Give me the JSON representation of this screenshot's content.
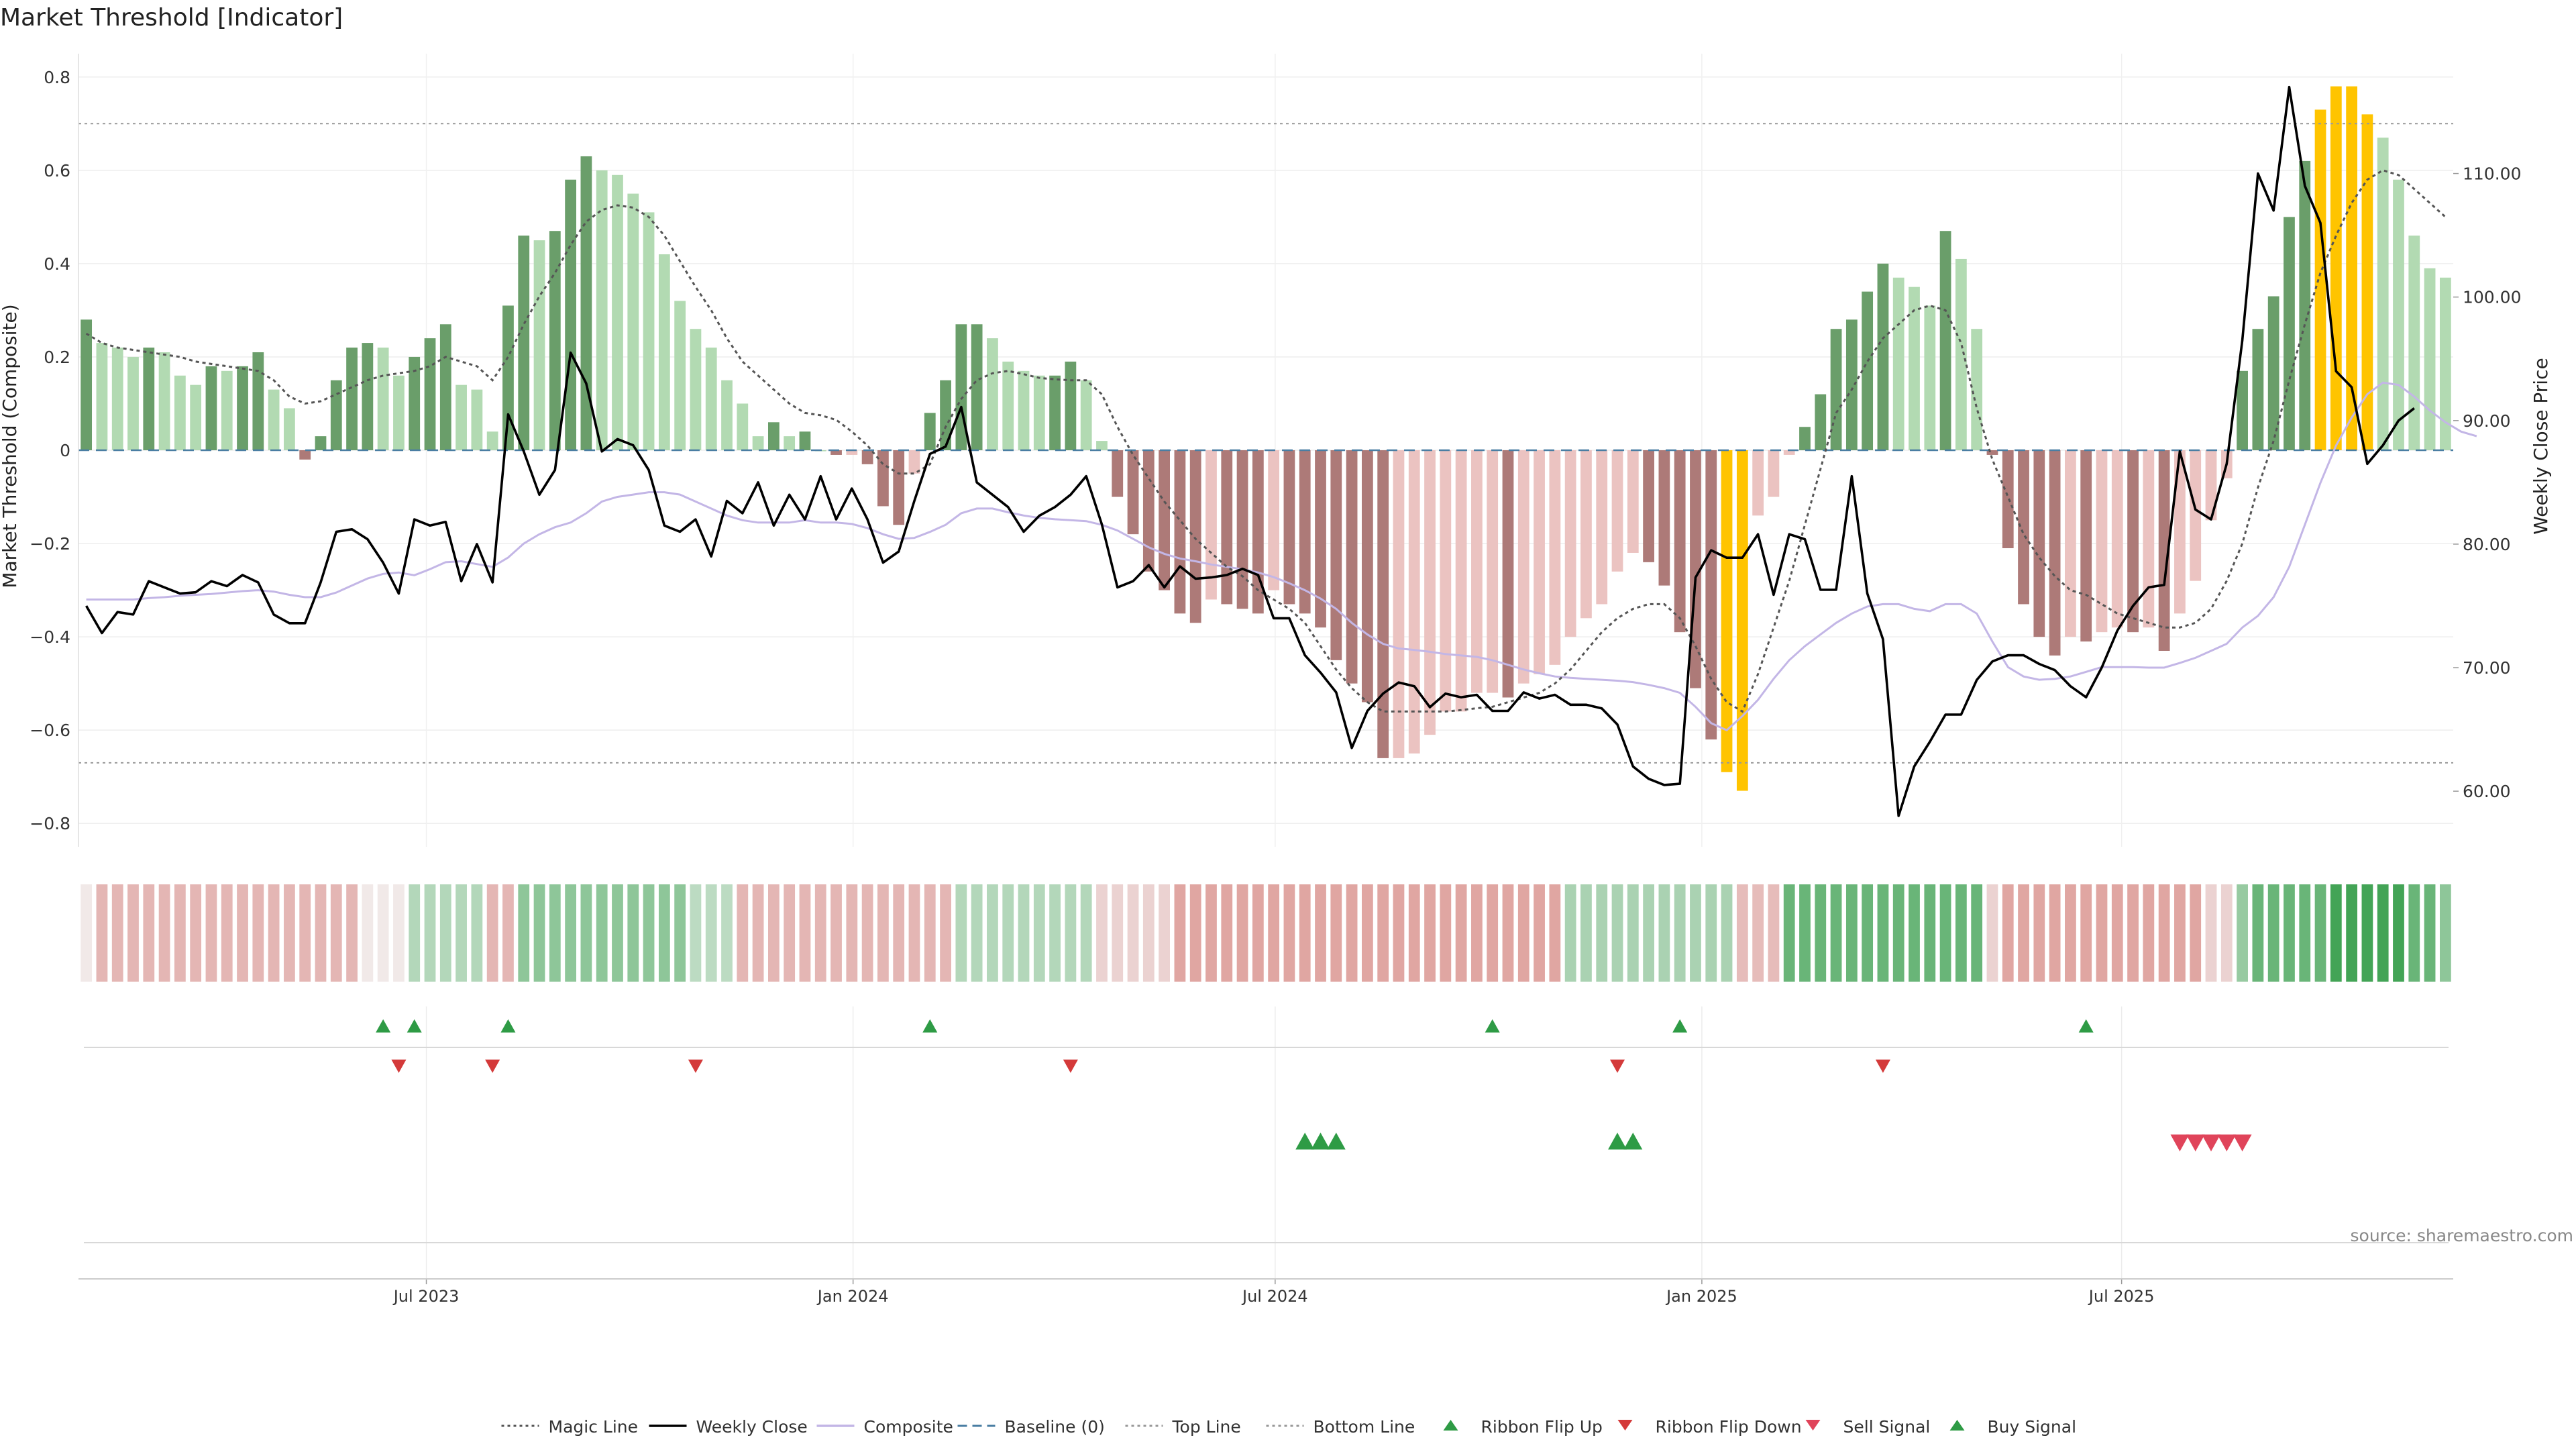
{
  "chart_data": {
    "type": "bar",
    "title": "Market Threshold [Indicator]",
    "ylabel": "Market Threshold (Composite)",
    "y2label": "Weekly Close Price",
    "ylim": [
      -0.85,
      0.85
    ],
    "y2lim": [
      55.5,
      119.7
    ],
    "yticks": [
      "0.8",
      "0.6",
      "0.4",
      "0.2",
      "0",
      "−0.2",
      "−0.4",
      "−0.6",
      "−0.8"
    ],
    "y2ticks": [
      "110.00",
      "100.00",
      "90.00",
      "80.00",
      "70.00",
      "60.00"
    ],
    "xticks": [
      "Jul 2023",
      "Jan 2024",
      "Jul 2024",
      "Jan 2025",
      "Jul 2025"
    ],
    "xtick_dates": [
      "2023-07-01",
      "2024-01-01",
      "2024-07-01",
      "2025-01-01",
      "2025-07-01"
    ],
    "date_range": [
      "2023-02-01",
      "2025-11-21"
    ],
    "top_line": 0.7,
    "bottom_line": -0.67,
    "baseline": 0,
    "source": "source: sharemaestro.com",
    "legend_position": "bottom-center",
    "legend": [
      {
        "label": "Magic Line",
        "kind": "dotted",
        "color": "#555555"
      },
      {
        "label": "Weekly Close",
        "kind": "solid",
        "color": "#000000"
      },
      {
        "label": "Composite",
        "kind": "solid",
        "color": "#c3b6e6"
      },
      {
        "label": "Baseline (0)",
        "kind": "dashed",
        "color": "#4a7ea3"
      },
      {
        "label": "Top Line",
        "kind": "dotted",
        "color": "#999999"
      },
      {
        "label": "Bottom Line",
        "kind": "dotted",
        "color": "#999999"
      },
      {
        "label": "Ribbon Flip Up",
        "kind": "tri-up",
        "color": "#2e9b45"
      },
      {
        "label": "Ribbon Flip Down",
        "kind": "tri-down",
        "color": "#d43a3a"
      },
      {
        "label": "Sell Signal",
        "kind": "tri-down",
        "color": "#e0445a"
      },
      {
        "label": "Buy Signal",
        "kind": "tri-up",
        "color": "#2e9b45"
      }
    ],
    "colors": {
      "pos_strong": "#6a9e6a",
      "pos_light": "#b2dab2",
      "neg_strong": "#ad7a78",
      "neg_light": "#ebc3c1",
      "extreme": "#ffc400",
      "ribbon_pos": "#3aa04e",
      "ribbon_neg": "#d7847f"
    },
    "series": [
      {
        "name": "Market Threshold",
        "type": "bar",
        "values": [
          0.28,
          0.23,
          0.22,
          0.2,
          0.22,
          0.21,
          0.16,
          0.14,
          0.18,
          0.17,
          0.18,
          0.21,
          0.13,
          0.09,
          -0.02,
          0.03,
          0.15,
          0.22,
          0.23,
          0.22,
          0.16,
          0.2,
          0.24,
          0.27,
          0.14,
          0.13,
          0.04,
          0.31,
          0.46,
          0.45,
          0.47,
          0.58,
          0.63,
          0.6,
          0.59,
          0.55,
          0.51,
          0.42,
          0.32,
          0.26,
          0.22,
          0.15,
          0.1,
          0.03,
          0.06,
          0.03,
          0.04,
          0.0,
          -0.01,
          -0.01,
          -0.03,
          -0.12,
          -0.16,
          -0.05,
          0.08,
          0.15,
          0.27,
          0.27,
          0.24,
          0.19,
          0.17,
          0.16,
          0.16,
          0.19,
          0.15,
          0.02,
          -0.1,
          -0.18,
          -0.26,
          -0.3,
          -0.35,
          -0.37,
          -0.32,
          -0.33,
          -0.34,
          -0.35,
          -0.3,
          -0.33,
          -0.35,
          -0.38,
          -0.45,
          -0.5,
          -0.54,
          -0.66,
          -0.66,
          -0.65,
          -0.61,
          -0.56,
          -0.56,
          -0.52,
          -0.52,
          -0.53,
          -0.5,
          -0.48,
          -0.46,
          -0.4,
          -0.36,
          -0.33,
          -0.26,
          -0.22,
          -0.24,
          -0.29,
          -0.39,
          -0.51,
          -0.62,
          -0.69,
          -0.73,
          -0.14,
          -0.1,
          -0.01,
          0.05,
          0.12,
          0.26,
          0.28,
          0.34,
          0.4,
          0.37,
          0.35,
          0.31,
          0.47,
          0.41,
          0.26,
          -0.01,
          -0.21,
          -0.33,
          -0.4,
          -0.44,
          -0.4,
          -0.41,
          -0.39,
          -0.38,
          -0.39,
          -0.38,
          -0.43,
          -0.35,
          -0.28,
          -0.15,
          -0.06,
          0.17,
          0.26,
          0.33,
          0.5,
          0.62,
          0.73,
          0.78,
          0.78,
          0.72,
          0.67,
          0.58,
          0.46,
          0.39,
          0.37
        ]
      },
      {
        "name": "Weekly Close",
        "type": "line",
        "axis": "right",
        "values": [
          75.0,
          72.8,
          74.5,
          74.3,
          77.0,
          76.5,
          76.0,
          76.1,
          77.0,
          76.6,
          77.5,
          76.9,
          74.3,
          73.6,
          73.6,
          76.9,
          81.0,
          81.2,
          80.4,
          78.5,
          76.0,
          82.0,
          81.5,
          81.8,
          77.0,
          80.0,
          76.9,
          90.5,
          87.5,
          84.0,
          86.0,
          95.5,
          93.0,
          87.5,
          88.5,
          88.0,
          86.0,
          81.5,
          81.0,
          82.0,
          79.0,
          83.5,
          82.5,
          85.0,
          81.5,
          84.0,
          82.0,
          85.5,
          82.0,
          84.5,
          82.0,
          78.5,
          79.4,
          83.5,
          87.3,
          87.9,
          91.1,
          85.0,
          84.0,
          83.0,
          81.0,
          82.3,
          83.0,
          84.0,
          85.5,
          81.6,
          76.5,
          77.0,
          78.3,
          76.5,
          78.2,
          77.2,
          77.3,
          77.5,
          78.0,
          77.5,
          74.0,
          74.0,
          71.0,
          69.6,
          68.0,
          63.5,
          66.5,
          67.9,
          68.8,
          68.5,
          66.8,
          67.9,
          67.6,
          67.8,
          66.5,
          66.5,
          68.0,
          67.5,
          67.8,
          67.0,
          67.0,
          66.7,
          65.4,
          62.0,
          61.0,
          60.5,
          60.6,
          77.3,
          79.5,
          78.9,
          78.9,
          80.8,
          75.9,
          80.8,
          80.4,
          76.3,
          76.3,
          85.5,
          76.0,
          72.3,
          58.0,
          62.0,
          64.0,
          66.2,
          66.2,
          69.0,
          70.5,
          71.0,
          71.0,
          70.3,
          69.8,
          68.5,
          67.6,
          70.0,
          73.0,
          75.0,
          76.5,
          76.7,
          87.5,
          82.8,
          82.0,
          86.5,
          96.5,
          110.0,
          107.0,
          117.0,
          109.0,
          106.0,
          94.0,
          92.7,
          86.5,
          88.0,
          90.0,
          91.0
        ]
      },
      {
        "name": "Composite",
        "type": "line",
        "axis": "left",
        "values": [
          -0.32,
          -0.32,
          -0.32,
          -0.32,
          -0.317,
          -0.315,
          -0.312,
          -0.31,
          -0.308,
          -0.305,
          -0.302,
          -0.3,
          -0.303,
          -0.31,
          -0.315,
          -0.315,
          -0.305,
          -0.29,
          -0.275,
          -0.265,
          -0.262,
          -0.268,
          -0.255,
          -0.24,
          -0.238,
          -0.244,
          -0.25,
          -0.23,
          -0.2,
          -0.18,
          -0.165,
          -0.155,
          -0.135,
          -0.11,
          -0.1,
          -0.095,
          -0.09,
          -0.09,
          -0.095,
          -0.11,
          -0.125,
          -0.14,
          -0.15,
          -0.155,
          -0.155,
          -0.155,
          -0.15,
          -0.155,
          -0.155,
          -0.158,
          -0.167,
          -0.18,
          -0.19,
          -0.188,
          -0.175,
          -0.16,
          -0.135,
          -0.125,
          -0.125,
          -0.133,
          -0.14,
          -0.145,
          -0.148,
          -0.15,
          -0.152,
          -0.16,
          -0.172,
          -0.19,
          -0.208,
          -0.222,
          -0.232,
          -0.238,
          -0.245,
          -0.25,
          -0.255,
          -0.262,
          -0.272,
          -0.285,
          -0.3,
          -0.318,
          -0.34,
          -0.37,
          -0.395,
          -0.415,
          -0.425,
          -0.428,
          -0.432,
          -0.437,
          -0.44,
          -0.443,
          -0.45,
          -0.46,
          -0.47,
          -0.478,
          -0.485,
          -0.488,
          -0.49,
          -0.492,
          -0.494,
          -0.497,
          -0.503,
          -0.51,
          -0.52,
          -0.55,
          -0.585,
          -0.6,
          -0.57,
          -0.535,
          -0.49,
          -0.45,
          -0.42,
          -0.395,
          -0.37,
          -0.35,
          -0.335,
          -0.33,
          -0.33,
          -0.34,
          -0.345,
          -0.33,
          -0.33,
          -0.35,
          -0.41,
          -0.465,
          -0.485,
          -0.492,
          -0.49,
          -0.485,
          -0.475,
          -0.465,
          -0.465,
          -0.465,
          -0.466,
          -0.466,
          -0.456,
          -0.445,
          -0.43,
          -0.415,
          -0.38,
          -0.355,
          -0.315,
          -0.25,
          -0.16,
          -0.07,
          0.01,
          0.07,
          0.12,
          0.145,
          0.14,
          0.115,
          0.085,
          0.06,
          0.04,
          0.03
        ]
      },
      {
        "name": "Magic Line",
        "type": "line",
        "axis": "left",
        "values": [
          0.25,
          0.23,
          0.22,
          0.215,
          0.21,
          0.205,
          0.2,
          0.19,
          0.185,
          0.18,
          0.175,
          0.17,
          0.15,
          0.115,
          0.1,
          0.105,
          0.12,
          0.135,
          0.15,
          0.16,
          0.165,
          0.17,
          0.18,
          0.2,
          0.19,
          0.18,
          0.15,
          0.2,
          0.27,
          0.33,
          0.38,
          0.44,
          0.49,
          0.515,
          0.525,
          0.52,
          0.5,
          0.46,
          0.405,
          0.35,
          0.3,
          0.24,
          0.19,
          0.16,
          0.13,
          0.1,
          0.08,
          0.075,
          0.065,
          0.04,
          0.01,
          -0.03,
          -0.05,
          -0.05,
          -0.03,
          0.05,
          0.11,
          0.15,
          0.165,
          0.17,
          0.163,
          0.155,
          0.152,
          0.15,
          0.15,
          0.12,
          0.05,
          -0.01,
          -0.06,
          -0.11,
          -0.15,
          -0.19,
          -0.22,
          -0.25,
          -0.27,
          -0.3,
          -0.32,
          -0.34,
          -0.37,
          -0.42,
          -0.47,
          -0.51,
          -0.54,
          -0.56,
          -0.56,
          -0.56,
          -0.56,
          -0.56,
          -0.557,
          -0.553,
          -0.55,
          -0.54,
          -0.53,
          -0.52,
          -0.5,
          -0.47,
          -0.43,
          -0.39,
          -0.36,
          -0.34,
          -0.33,
          -0.33,
          -0.36,
          -0.42,
          -0.49,
          -0.54,
          -0.56,
          -0.48,
          -0.38,
          -0.28,
          -0.16,
          -0.04,
          0.08,
          0.13,
          0.19,
          0.24,
          0.27,
          0.3,
          0.31,
          0.3,
          0.23,
          0.09,
          -0.02,
          -0.1,
          -0.18,
          -0.23,
          -0.27,
          -0.3,
          -0.31,
          -0.33,
          -0.35,
          -0.36,
          -0.37,
          -0.38,
          -0.38,
          -0.37,
          -0.34,
          -0.28,
          -0.2,
          -0.08,
          0.02,
          0.15,
          0.27,
          0.38,
          0.46,
          0.53,
          0.58,
          0.6,
          0.59,
          0.56,
          0.53,
          0.5
        ]
      },
      {
        "name": "Ribbon",
        "type": "ribbon",
        "values": [
          -0.1,
          -0.55,
          -0.55,
          -0.55,
          -0.55,
          -0.55,
          -0.55,
          -0.55,
          -0.55,
          -0.55,
          -0.55,
          -0.55,
          -0.55,
          -0.55,
          -0.55,
          -0.55,
          -0.55,
          -0.55,
          -0.1,
          -0.1,
          -0.1,
          0.35,
          0.35,
          0.35,
          0.35,
          0.35,
          -0.55,
          -0.55,
          0.55,
          0.55,
          0.55,
          0.55,
          0.55,
          0.55,
          0.55,
          0.55,
          0.55,
          0.55,
          0.55,
          0.3,
          0.3,
          0.3,
          -0.55,
          -0.55,
          -0.55,
          -0.55,
          -0.55,
          -0.55,
          -0.55,
          -0.55,
          -0.55,
          -0.55,
          -0.55,
          -0.55,
          -0.55,
          -0.55,
          0.35,
          0.35,
          0.35,
          0.35,
          0.35,
          0.35,
          0.35,
          0.35,
          0.35,
          -0.3,
          -0.3,
          -0.3,
          -0.3,
          -0.3,
          -0.7,
          -0.7,
          -0.7,
          -0.7,
          -0.7,
          -0.7,
          -0.7,
          -0.7,
          -0.7,
          -0.7,
          -0.7,
          -0.7,
          -0.7,
          -0.7,
          -0.7,
          -0.7,
          -0.7,
          -0.7,
          -0.7,
          -0.7,
          -0.7,
          -0.7,
          -0.7,
          -0.7,
          -0.7,
          0.4,
          0.4,
          0.4,
          0.4,
          0.4,
          0.4,
          0.4,
          0.4,
          0.4,
          0.4,
          0.4,
          -0.5,
          -0.5,
          -0.5,
          0.75,
          0.75,
          0.75,
          0.75,
          0.75,
          0.75,
          0.75,
          0.75,
          0.75,
          0.75,
          0.75,
          0.75,
          0.75,
          -0.3,
          -0.7,
          -0.7,
          -0.7,
          -0.7,
          -0.7,
          -0.7,
          -0.7,
          -0.7,
          -0.7,
          -0.7,
          -0.7,
          -0.7,
          -0.7,
          -0.3,
          -0.3,
          0.5,
          0.75,
          0.75,
          0.75,
          0.75,
          0.75,
          0.95,
          0.95,
          0.95,
          0.95,
          0.95,
          0.75,
          0.75,
          0.55,
          0.55,
          0.45
        ]
      },
      {
        "name": "Ribbon Flip Up",
        "type": "marker",
        "indices": [
          19,
          21,
          27,
          54,
          90,
          102,
          128
        ]
      },
      {
        "name": "Ribbon Flip Down",
        "type": "marker",
        "indices": [
          20,
          26,
          39,
          63,
          98,
          115
        ]
      },
      {
        "name": "Buy Signal",
        "type": "marker",
        "indices": [
          78,
          79,
          80,
          98,
          99
        ]
      },
      {
        "name": "Sell Signal",
        "type": "marker",
        "indices": [
          134,
          135,
          136,
          137,
          138
        ]
      }
    ]
  }
}
